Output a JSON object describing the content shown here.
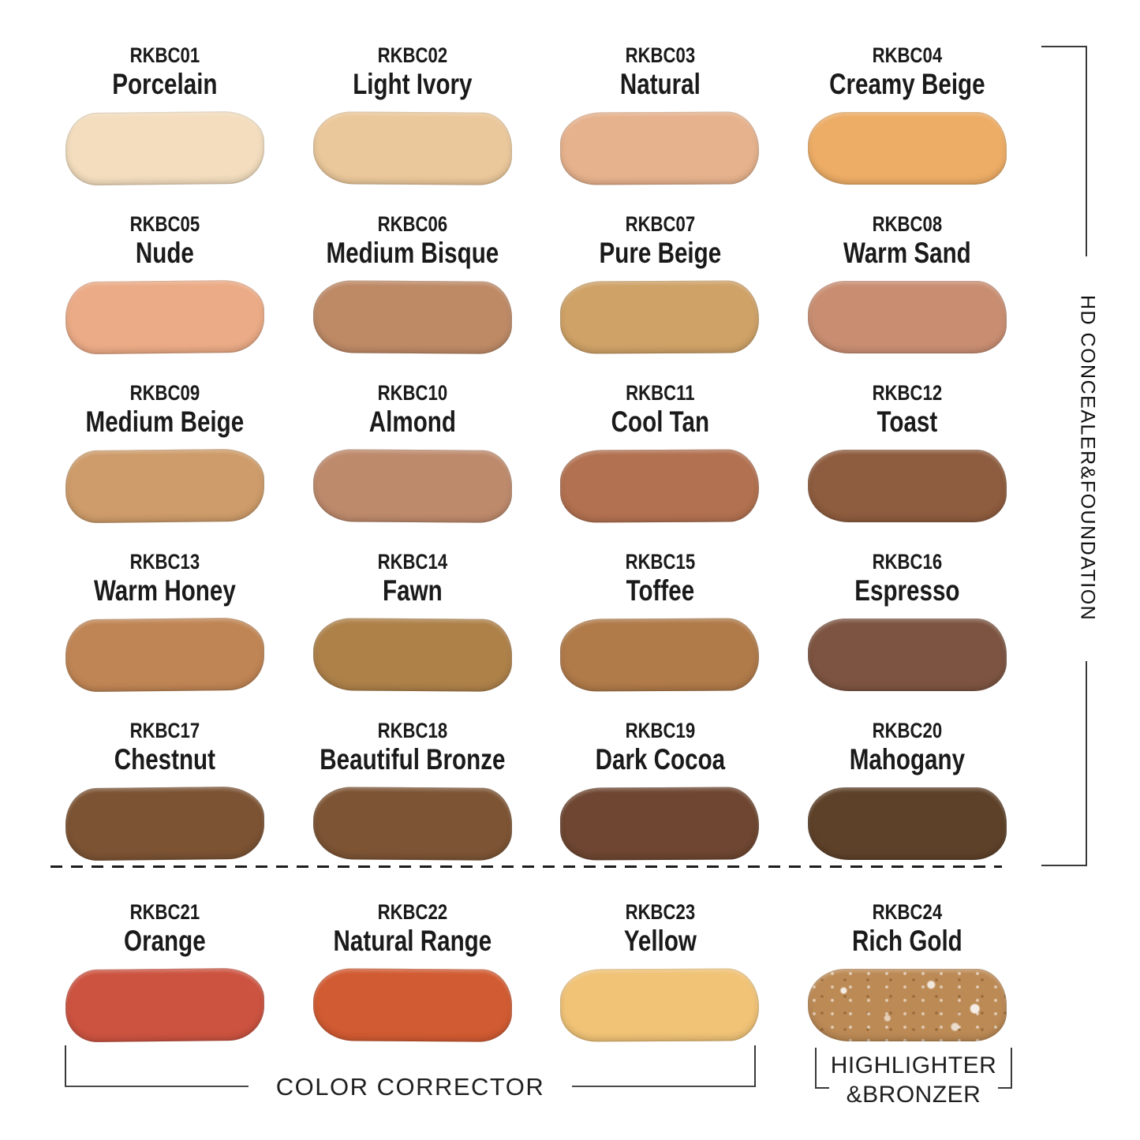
{
  "labels": {
    "right_vertical": "HD CONCEALER&FOUNDATION",
    "bottom_left": "COLOR CORRECTOR",
    "bottom_right_line1": "HIGHLIGHTER",
    "bottom_right_line2": "&BRONZER"
  },
  "colors": {
    "line": "#3a3a3a",
    "text": "#1a1a1a",
    "background": "#ffffff"
  },
  "chart_data": {
    "type": "table",
    "title": "",
    "columns": [
      "code",
      "shade_name",
      "group",
      "swatch_hex"
    ],
    "groups": [
      "HD CONCEALER&FOUNDATION",
      "COLOR CORRECTOR",
      "HIGHLIGHTER&BRONZER"
    ],
    "layout": {
      "grid_columns": 4,
      "foundation_rows": 5,
      "corrector_row": 1
    },
    "rows": [
      {
        "code": "RKBC01",
        "name": "Porcelain",
        "group": "HD CONCEALER&FOUNDATION",
        "color": "#F3DDBE",
        "sparkle": false
      },
      {
        "code": "RKBC02",
        "name": "Light Ivory",
        "group": "HD CONCEALER&FOUNDATION",
        "color": "#EBC89B",
        "sparkle": false
      },
      {
        "code": "RKBC03",
        "name": "Natural",
        "group": "HD CONCEALER&FOUNDATION",
        "color": "#E6B28D",
        "sparkle": false
      },
      {
        "code": "RKBC04",
        "name": "Creamy Beige",
        "group": "HD CONCEALER&FOUNDATION",
        "color": "#EDAD66",
        "sparkle": false
      },
      {
        "code": "RKBC05",
        "name": "Nude",
        "group": "HD CONCEALER&FOUNDATION",
        "color": "#EBAB86",
        "sparkle": false
      },
      {
        "code": "RKBC06",
        "name": "Medium Bisque",
        "group": "HD CONCEALER&FOUNDATION",
        "color": "#BE8A66",
        "sparkle": false
      },
      {
        "code": "RKBC07",
        "name": "Pure Beige",
        "group": "HD CONCEALER&FOUNDATION",
        "color": "#CFA267",
        "sparkle": false
      },
      {
        "code": "RKBC08",
        "name": "Warm Sand",
        "group": "HD CONCEALER&FOUNDATION",
        "color": "#C98E72",
        "sparkle": false
      },
      {
        "code": "RKBC09",
        "name": "Medium Beige",
        "group": "HD CONCEALER&FOUNDATION",
        "color": "#CE9C6A",
        "sparkle": false
      },
      {
        "code": "RKBC10",
        "name": "Almond",
        "group": "HD CONCEALER&FOUNDATION",
        "color": "#BE8A6C",
        "sparkle": false
      },
      {
        "code": "RKBC11",
        "name": "Cool Tan",
        "group": "HD CONCEALER&FOUNDATION",
        "color": "#B27150",
        "sparkle": false
      },
      {
        "code": "RKBC12",
        "name": "Toast",
        "group": "HD CONCEALER&FOUNDATION",
        "color": "#8E5C3E",
        "sparkle": false
      },
      {
        "code": "RKBC13",
        "name": "Warm Honey",
        "group": "HD CONCEALER&FOUNDATION",
        "color": "#C08554",
        "sparkle": false
      },
      {
        "code": "RKBC14",
        "name": "Fawn",
        "group": "HD CONCEALER&FOUNDATION",
        "color": "#AE8149",
        "sparkle": false
      },
      {
        "code": "RKBC15",
        "name": "Toffee",
        "group": "HD CONCEALER&FOUNDATION",
        "color": "#B07A49",
        "sparkle": false
      },
      {
        "code": "RKBC16",
        "name": "Espresso",
        "group": "HD CONCEALER&FOUNDATION",
        "color": "#7D5441",
        "sparkle": false
      },
      {
        "code": "RKBC17",
        "name": "Chestnut",
        "group": "HD CONCEALER&FOUNDATION",
        "color": "#7C5333",
        "sparkle": false
      },
      {
        "code": "RKBC18",
        "name": "Beautiful Bronze",
        "group": "HD CONCEALER&FOUNDATION",
        "color": "#7D5434",
        "sparkle": false
      },
      {
        "code": "RKBC19",
        "name": "Dark Cocoa",
        "group": "HD CONCEALER&FOUNDATION",
        "color": "#6E4631",
        "sparkle": false
      },
      {
        "code": "RKBC20",
        "name": "Mahogany",
        "group": "HD CONCEALER&FOUNDATION",
        "color": "#5E4129",
        "sparkle": false
      },
      {
        "code": "RKBC21",
        "name": "Orange",
        "group": "COLOR CORRECTOR",
        "color": "#CC5340",
        "sparkle": false
      },
      {
        "code": "RKBC22",
        "name": "Natural Range",
        "group": "COLOR CORRECTOR",
        "color": "#D15B32",
        "sparkle": false
      },
      {
        "code": "RKBC23",
        "name": "Yellow",
        "group": "COLOR CORRECTOR",
        "color": "#F0C377",
        "sparkle": false
      },
      {
        "code": "RKBC24",
        "name": "Rich Gold",
        "group": "HIGHLIGHTER&BRONZER",
        "color": "#BC8A55",
        "sparkle": true
      }
    ]
  }
}
